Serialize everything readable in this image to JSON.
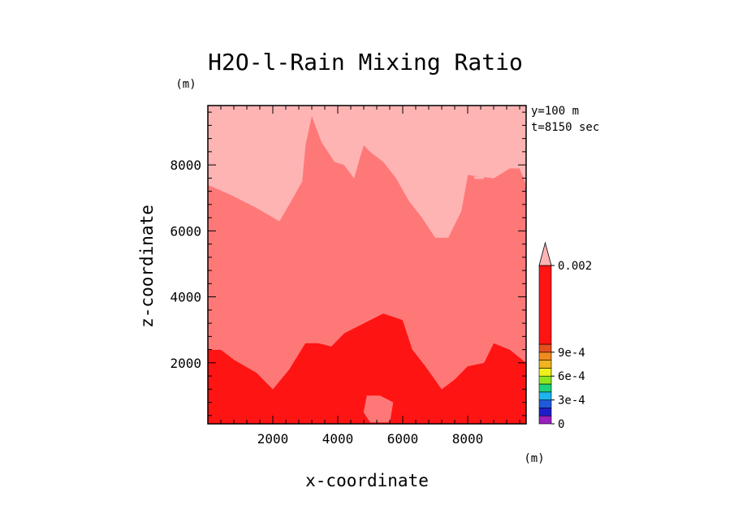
{
  "chart_data": {
    "type": "heatmap",
    "title": "H2O-l-Rain Mixing Ratio",
    "xlabel": "x-coordinate",
    "ylabel": "z-coordinate",
    "x_unit": "(m)",
    "y_unit": "(m)",
    "annotations": [
      "y=100 m",
      "t=8150 sec"
    ],
    "xlim": [
      0,
      9800
    ],
    "ylim": [
      150,
      9800
    ],
    "x_ticks": [
      2000,
      4000,
      6000,
      8000
    ],
    "y_ticks": [
      2000,
      4000,
      6000,
      8000
    ],
    "x_tick_labels": [
      "2000",
      "4000",
      "6000",
      "8000"
    ],
    "y_tick_labels": [
      "2000",
      "4000",
      "6000",
      "8000"
    ],
    "colorbar": {
      "levels": [
        0,
        0.0001,
        0.0002,
        0.0003,
        0.0004,
        0.0005,
        0.0006,
        0.0007,
        0.0008,
        0.0009,
        0.001,
        0.002
      ],
      "colors": [
        "#9a1fbf",
        "#1e1ec8",
        "#1e5adc",
        "#1eb4f0",
        "#1ed27a",
        "#8ce61e",
        "#f0f01e",
        "#f0b41e",
        "#f08c1e",
        "#e6501e",
        "#ff1414",
        "#ff7878",
        "#ffb4b4"
      ],
      "labels": [
        "0.002",
        "9e-4",
        "6e-4",
        "3e-4",
        "0"
      ],
      "label_values": [
        0.002,
        0.0009,
        0.0006,
        0.0003,
        0
      ]
    },
    "regions": [
      {
        "range": ">0.002",
        "color": "#ffb4b4",
        "polygon": [
          [
            0,
            9800
          ],
          [
            9800,
            9800
          ],
          [
            9800,
            7400
          ],
          [
            9600,
            7900
          ],
          [
            9300,
            7900
          ],
          [
            8800,
            7600
          ],
          [
            8000,
            7700
          ],
          [
            7800,
            6600
          ],
          [
            7600,
            6200
          ],
          [
            7400,
            5800
          ],
          [
            7000,
            5800
          ],
          [
            6600,
            6400
          ],
          [
            6200,
            6900
          ],
          [
            5800,
            7600
          ],
          [
            5400,
            8100
          ],
          [
            5000,
            8400
          ],
          [
            4800,
            8600
          ],
          [
            4700,
            8300
          ],
          [
            4500,
            7600
          ],
          [
            4200,
            8000
          ],
          [
            3900,
            8100
          ],
          [
            3500,
            8700
          ],
          [
            3200,
            9500
          ],
          [
            3000,
            8600
          ],
          [
            2900,
            7500
          ],
          [
            2500,
            6800
          ],
          [
            2200,
            6300
          ],
          [
            1500,
            6700
          ],
          [
            700,
            7100
          ],
          [
            0,
            7400
          ]
        ]
      }
    ],
    "regions_mid": [
      {
        "range": "0.001-0.002",
        "color": "#ff7878",
        "polygon": [
          [
            0,
            7400
          ],
          [
            700,
            7100
          ],
          [
            1500,
            6700
          ],
          [
            2200,
            6300
          ],
          [
            2500,
            6800
          ],
          [
            2900,
            7500
          ],
          [
            3000,
            8600
          ],
          [
            3200,
            9500
          ],
          [
            3500,
            8700
          ],
          [
            3900,
            8100
          ],
          [
            4200,
            8000
          ],
          [
            4500,
            7600
          ],
          [
            4700,
            8300
          ],
          [
            4800,
            8600
          ],
          [
            5000,
            8400
          ],
          [
            5400,
            8100
          ],
          [
            5800,
            7600
          ],
          [
            6200,
            6900
          ],
          [
            6600,
            6400
          ],
          [
            7000,
            5800
          ],
          [
            7400,
            5800
          ],
          [
            7600,
            6200
          ],
          [
            7800,
            6600
          ],
          [
            8000,
            7700
          ],
          [
            8800,
            7600
          ],
          [
            9300,
            7900
          ],
          [
            9600,
            7900
          ],
          [
            9800,
            7400
          ],
          [
            9800,
            2000
          ],
          [
            9300,
            2400
          ],
          [
            8800,
            2600
          ],
          [
            8500,
            2000
          ],
          [
            8000,
            1900
          ],
          [
            7600,
            1500
          ],
          [
            7200,
            1200
          ],
          [
            6700,
            1900
          ],
          [
            6300,
            2400
          ],
          [
            6000,
            3300
          ],
          [
            5400,
            3500
          ],
          [
            5000,
            3300
          ],
          [
            4200,
            2900
          ],
          [
            3800,
            2500
          ],
          [
            3400,
            2600
          ],
          [
            3000,
            2600
          ],
          [
            2500,
            1800
          ],
          [
            2000,
            1200
          ],
          [
            1500,
            1700
          ],
          [
            800,
            2100
          ],
          [
            400,
            2400
          ],
          [
            0,
            2400
          ]
        ]
      }
    ],
    "regions_low": [
      {
        "range": "0.001-0.002",
        "color": "#ff7878",
        "polygon": [
          [
            4900,
            1000
          ],
          [
            5300,
            1000
          ],
          [
            5700,
            800
          ],
          [
            5600,
            200
          ],
          [
            5000,
            200
          ],
          [
            4800,
            500
          ]
        ]
      }
    ]
  }
}
